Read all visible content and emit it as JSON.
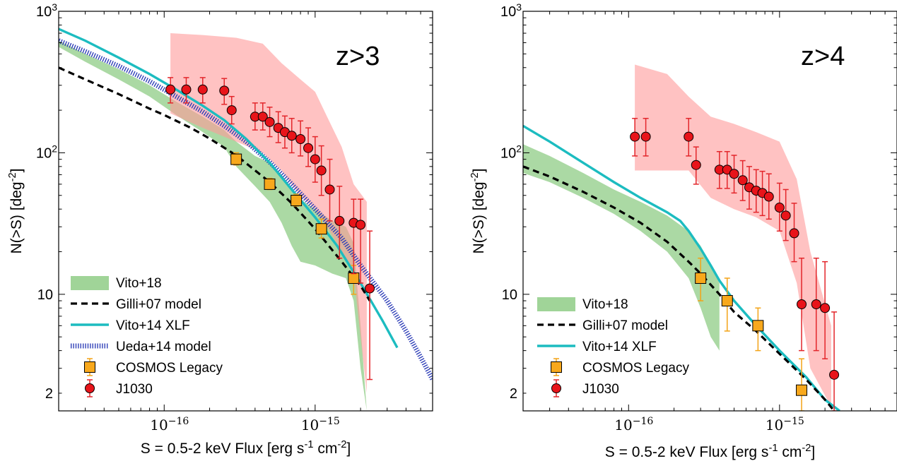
{
  "chart_data": [
    {
      "type": "line",
      "panel_label": "z>3",
      "xlabel": "S = 0.5-2 keV Flux [erg s$^{-1}$ cm$^{-2}$]",
      "ylabel": "N(>S) [deg$^{-2}$]",
      "x_scale": "log",
      "y_scale": "log",
      "xlim": [
        2e-17,
        6e-15
      ],
      "ylim": [
        1.5,
        1000
      ],
      "x_ticks": [
        {
          "value": 1e-16,
          "mantissa": "10",
          "exponent": "−16"
        },
        {
          "value": 1e-15,
          "mantissa": "10",
          "exponent": "−15"
        }
      ],
      "y_ticks": [
        {
          "value": 1000,
          "label": "10",
          "exponent": "3"
        },
        {
          "value": 100,
          "label": "10",
          "exponent": "2"
        },
        {
          "value": 10,
          "label": "10",
          "exponent": ""
        },
        {
          "value": 2,
          "label": "2",
          "exponent": ""
        }
      ],
      "legend_position": "lower-left",
      "legend": [
        {
          "label": "Vito+18",
          "kind": "band",
          "color": "#8fcc86"
        },
        {
          "label": "Gilli+07 model",
          "kind": "dashed",
          "color": "#000000"
        },
        {
          "label": "Vito+14 XLF",
          "kind": "line",
          "color": "#1cbcc0"
        },
        {
          "label": "Ueda+14 model",
          "kind": "dotted",
          "color": "#2f3fb8"
        },
        {
          "label": "COSMOS Legacy",
          "kind": "square",
          "color": "#f8a81c"
        },
        {
          "label": "J1030",
          "kind": "circle",
          "color": "#e8141a"
        }
      ],
      "bands": {
        "Vito+18": {
          "x": [
            2e-17,
            3e-17,
            5e-17,
            8e-17,
            1.2e-16,
            1.8e-16,
            2.5e-16,
            3e-16,
            4e-16,
            5e-16,
            6e-16,
            7e-16,
            8e-16,
            1e-15,
            1.3e-15,
            1.6e-15,
            1.8e-15,
            2e-15,
            2.2e-15
          ],
          "upper": [
            620,
            500,
            390,
            300,
            230,
            180,
            145,
            120,
            95,
            85,
            70,
            56,
            47,
            40,
            33,
            30,
            23,
            6,
            1.5
          ],
          "lower": [
            560,
            440,
            330,
            250,
            185,
            140,
            110,
            80,
            58,
            45,
            32,
            22,
            17,
            16,
            14,
            13,
            9,
            3,
            1.5
          ]
        },
        "J1030": {
          "x": [
            1.1e-16,
            1.1e-16,
            1.8e-16,
            3e-16,
            4.5e-16,
            6e-16,
            8e-16,
            1e-15,
            1.2e-15,
            1.5e-15,
            1.8e-15,
            2.2e-15
          ],
          "upper": [
            190,
            700,
            680,
            650,
            590,
            430,
            330,
            270,
            180,
            110,
            60,
            45
          ],
          "lower": [
            190,
            190,
            150,
            120,
            100,
            75,
            50,
            40,
            30,
            20,
            14,
            2
          ]
        }
      },
      "curves": {
        "Gilli+07 model": {
          "x": [
            2e-17,
            3e-17,
            5e-17,
            8e-17,
            1e-16,
            1.5e-16,
            2e-16,
            3e-16,
            5e-16,
            7e-16,
            1e-15,
            1.5e-15,
            2e-15,
            2.3e-15
          ],
          "y": [
            400,
            330,
            260,
            205,
            185,
            150,
            126,
            96,
            62,
            44,
            29,
            17,
            11.5,
            9
          ]
        },
        "Vito+14 XLF": {
          "x": [
            2e-17,
            3e-17,
            5e-17,
            8e-17,
            1.2e-16,
            1.8e-16,
            2.5e-16,
            3.5e-16,
            5e-16,
            7e-16,
            1e-15,
            1.4e-15,
            2e-15,
            2.8e-15,
            3.5e-15
          ],
          "y": [
            750,
            620,
            470,
            360,
            280,
            215,
            170,
            125,
            85,
            55,
            35,
            22,
            12,
            6.5,
            4.2
          ]
        },
        "Ueda+14 model": {
          "x": [
            2e-17,
            3e-17,
            5e-17,
            8e-17,
            1.2e-16,
            1.8e-16,
            2.5e-16,
            3.5e-16,
            5e-16,
            7e-16,
            1e-15,
            1.5e-15,
            2e-15,
            3e-15,
            4e-15,
            5e-15,
            6e-15
          ],
          "y": [
            620,
            520,
            410,
            320,
            250,
            195,
            155,
            120,
            86,
            60,
            40,
            25,
            16,
            9,
            5.5,
            3.6,
            2.5
          ]
        }
      },
      "points": {
        "J1030": [
          {
            "x": 1.1e-16,
            "y": 280,
            "lo": 225,
            "hi": 340
          },
          {
            "x": 1.4e-16,
            "y": 280,
            "lo": 225,
            "hi": 340
          },
          {
            "x": 1.8e-16,
            "y": 280,
            "lo": 225,
            "hi": 340
          },
          {
            "x": 2.5e-16,
            "y": 275,
            "lo": 220,
            "hi": 335
          },
          {
            "x": 2.8e-16,
            "y": 200,
            "lo": 160,
            "hi": 250
          },
          {
            "x": 4e-16,
            "y": 180,
            "lo": 145,
            "hi": 225
          },
          {
            "x": 4.5e-16,
            "y": 180,
            "lo": 145,
            "hi": 225
          },
          {
            "x": 5e-16,
            "y": 165,
            "lo": 130,
            "hi": 210
          },
          {
            "x": 5.7e-16,
            "y": 150,
            "lo": 118,
            "hi": 195
          },
          {
            "x": 6.3e-16,
            "y": 140,
            "lo": 108,
            "hi": 182
          },
          {
            "x": 7e-16,
            "y": 132,
            "lo": 100,
            "hi": 175
          },
          {
            "x": 8e-16,
            "y": 125,
            "lo": 95,
            "hi": 168
          },
          {
            "x": 9e-16,
            "y": 108,
            "lo": 80,
            "hi": 150
          },
          {
            "x": 1e-15,
            "y": 90,
            "lo": 62,
            "hi": 130
          },
          {
            "x": 1.1e-15,
            "y": 75,
            "lo": 50,
            "hi": 112
          },
          {
            "x": 1.25e-15,
            "y": 55,
            "lo": 33,
            "hi": 90
          },
          {
            "x": 1.45e-15,
            "y": 33,
            "lo": 18,
            "hi": 58
          },
          {
            "x": 1.8e-15,
            "y": 32,
            "lo": 14,
            "hi": 47
          },
          {
            "x": 2e-15,
            "y": 31,
            "lo": 12,
            "hi": 47
          },
          {
            "x": 2.3e-15,
            "y": 11,
            "lo": 2.5,
            "hi": 28
          }
        ],
        "COSMOS Legacy": [
          {
            "x": 3e-16,
            "y": 90,
            "lo": 82,
            "hi": 100
          },
          {
            "x": 5e-16,
            "y": 60,
            "lo": 55,
            "hi": 66
          },
          {
            "x": 7.5e-16,
            "y": 46,
            "lo": 42,
            "hi": 51
          },
          {
            "x": 1.1e-15,
            "y": 29,
            "lo": 25,
            "hi": 34
          },
          {
            "x": 1.8e-15,
            "y": 13,
            "lo": 10,
            "hi": 16
          }
        ]
      }
    },
    {
      "type": "line",
      "panel_label": "z>4",
      "xlabel": "S = 0.5-2 keV Flux [erg s$^{-1}$ cm$^{-2}$]",
      "ylabel": "N(>S) [deg$^{-2}$]",
      "x_scale": "log",
      "y_scale": "log",
      "xlim": [
        2e-17,
        6e-15
      ],
      "ylim": [
        1.5,
        1000
      ],
      "x_ticks": [
        {
          "value": 1e-16,
          "mantissa": "10",
          "exponent": "−16"
        },
        {
          "value": 1e-15,
          "mantissa": "10",
          "exponent": "−15"
        }
      ],
      "y_ticks": [
        {
          "value": 1000,
          "label": "10",
          "exponent": "3"
        },
        {
          "value": 100,
          "label": "10",
          "exponent": "2"
        },
        {
          "value": 10,
          "label": "10",
          "exponent": ""
        },
        {
          "value": 2,
          "label": "2",
          "exponent": ""
        }
      ],
      "legend_position": "lower-left",
      "legend": [
        {
          "label": "Vito+18",
          "kind": "band",
          "color": "#8fcc86"
        },
        {
          "label": "Gilli+07 model",
          "kind": "dashed",
          "color": "#000000"
        },
        {
          "label": "Vito+14 XLF",
          "kind": "line",
          "color": "#1cbcc0"
        },
        {
          "label": "COSMOS Legacy",
          "kind": "square",
          "color": "#f8a81c"
        },
        {
          "label": "J1030",
          "kind": "circle",
          "color": "#e8141a"
        }
      ],
      "bands": {
        "Vito+18": {
          "x": [
            2e-17,
            3e-17,
            5e-17,
            8e-17,
            1.2e-16,
            1.8e-16,
            2.5e-16,
            3e-16,
            3.5e-16,
            4e-16
          ],
          "upper": [
            115,
            95,
            72,
            55,
            45,
            36,
            28,
            22,
            16,
            12
          ],
          "lower": [
            72,
            62,
            48,
            37,
            28,
            20,
            13,
            8,
            5,
            4
          ]
        },
        "J1030": {
          "x": [
            1.1e-16,
            1.1e-16,
            1.8e-16,
            2.5e-16,
            3.5e-16,
            5e-16,
            7e-16,
            1e-15,
            1.3e-15,
            1.6e-15,
            2.2e-15
          ],
          "upper": [
            75,
            420,
            360,
            250,
            180,
            160,
            140,
            120,
            65,
            20,
            6
          ],
          "lower": [
            75,
            75,
            75,
            75,
            48,
            40,
            35,
            28,
            12,
            3,
            1.6
          ]
        }
      },
      "curves": {
        "Gilli+07 model": {
          "x": [
            2e-17,
            3e-17,
            5e-17,
            8e-17,
            1.2e-16,
            1.8e-16,
            2.5e-16,
            3e-16,
            4e-16,
            5e-16,
            7e-16,
            1e-15,
            1.5e-15,
            2e-15,
            2.3e-15
          ],
          "y": [
            80,
            68,
            53,
            41,
            32,
            23.5,
            17,
            14,
            10,
            7.5,
            5.5,
            3.8,
            2.5,
            1.8,
            1.5
          ]
        },
        "Vito+14 XLF": {
          "x": [
            2e-17,
            3e-17,
            5e-17,
            8e-17,
            1.2e-16,
            1.8e-16,
            2.2e-16,
            2.5e-16,
            3e-16,
            3.5e-16,
            4e-16,
            5e-16,
            7e-16,
            1e-15,
            1.5e-15,
            2e-15,
            2.5e-15
          ],
          "y": [
            155,
            120,
            85,
            62,
            48,
            38,
            33,
            28,
            21,
            16,
            12.5,
            9,
            6,
            4,
            2.6,
            1.8,
            1.5
          ]
        }
      },
      "points": {
        "J1030": [
          {
            "x": 1.1e-16,
            "y": 130,
            "lo": 95,
            "hi": 175
          },
          {
            "x": 1.3e-16,
            "y": 130,
            "lo": 95,
            "hi": 175
          },
          {
            "x": 2.5e-16,
            "y": 130,
            "lo": 95,
            "hi": 175
          },
          {
            "x": 2.8e-16,
            "y": 82,
            "lo": 60,
            "hi": 110
          },
          {
            "x": 4e-16,
            "y": 76,
            "lo": 56,
            "hi": 102
          },
          {
            "x": 4.5e-16,
            "y": 76,
            "lo": 56,
            "hi": 102
          },
          {
            "x": 5e-16,
            "y": 71,
            "lo": 52,
            "hi": 96
          },
          {
            "x": 5.7e-16,
            "y": 64,
            "lo": 46,
            "hi": 88
          },
          {
            "x": 6.3e-16,
            "y": 57,
            "lo": 40,
            "hi": 80
          },
          {
            "x": 7e-16,
            "y": 54,
            "lo": 38,
            "hi": 76
          },
          {
            "x": 7.7e-16,
            "y": 52,
            "lo": 36,
            "hi": 74
          },
          {
            "x": 8.5e-16,
            "y": 49,
            "lo": 34,
            "hi": 71
          },
          {
            "x": 1e-15,
            "y": 41,
            "lo": 28,
            "hi": 61
          },
          {
            "x": 1.1e-15,
            "y": 36,
            "lo": 24,
            "hi": 55
          },
          {
            "x": 1.25e-15,
            "y": 27,
            "lo": 17,
            "hi": 44
          },
          {
            "x": 1.4e-15,
            "y": 8.5,
            "lo": 4,
            "hi": 18
          },
          {
            "x": 1.75e-15,
            "y": 8.5,
            "lo": 4,
            "hi": 18
          },
          {
            "x": 2e-15,
            "y": 8,
            "lo": 3.5,
            "hi": 17
          },
          {
            "x": 2.3e-15,
            "y": 2.7,
            "lo": 1.5,
            "hi": 7.5
          }
        ],
        "COSMOS Legacy": [
          {
            "x": 3e-16,
            "y": 13,
            "lo": 9,
            "hi": 18
          },
          {
            "x": 4.5e-16,
            "y": 9,
            "lo": 5.5,
            "hi": 13
          },
          {
            "x": 7.2e-16,
            "y": 6,
            "lo": 4,
            "hi": 8
          },
          {
            "x": 1.4e-15,
            "y": 2.1,
            "lo": 1.5,
            "hi": 3.5
          }
        ]
      }
    }
  ]
}
